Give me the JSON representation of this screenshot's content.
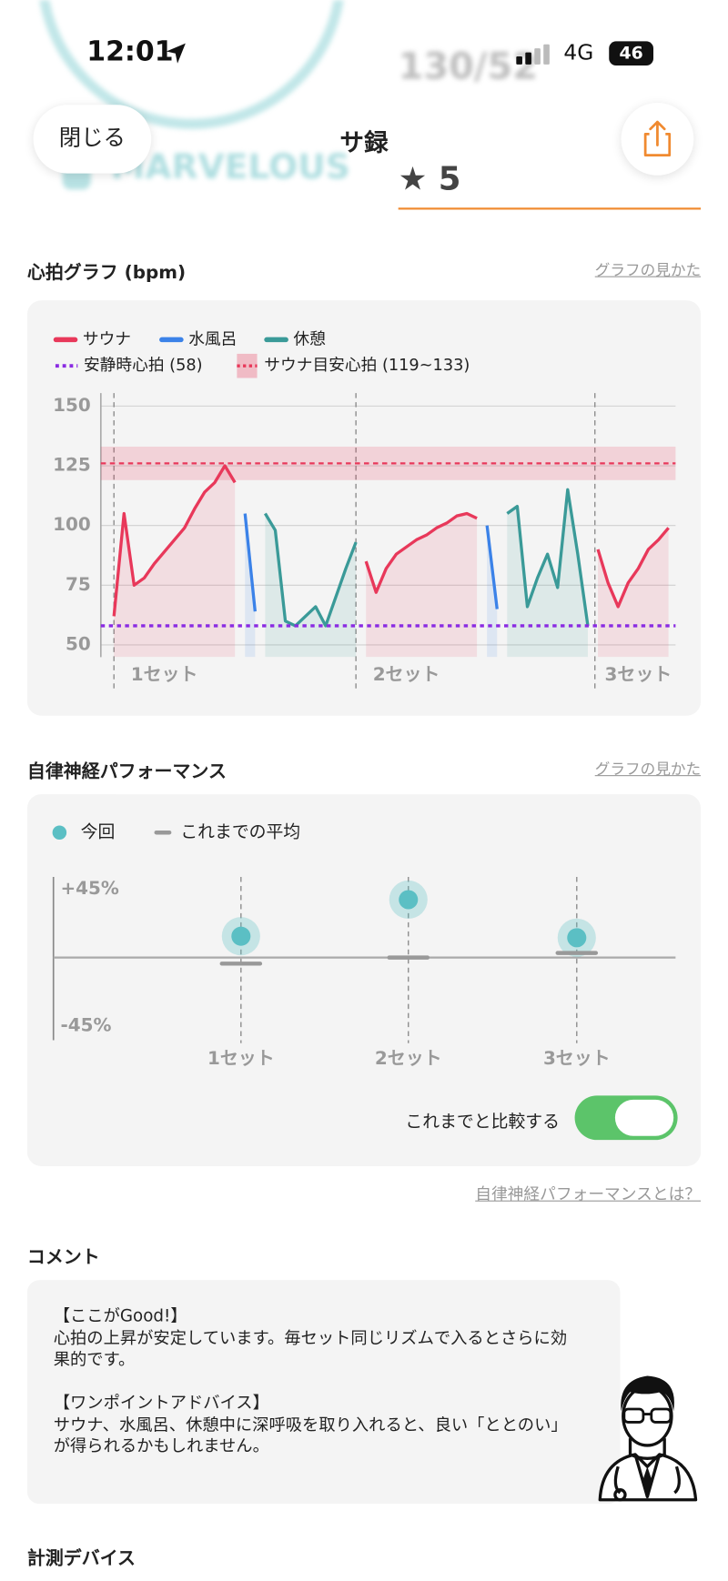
{
  "status_bar": {
    "time": "12:01",
    "network": "4G",
    "battery": "46"
  },
  "header": {
    "close": "閉じる",
    "title": "サ録"
  },
  "background": {
    "score_value": "130/52",
    "rating": "MARVELOUS",
    "stars": 5
  },
  "heart_section": {
    "title": "心拍グラフ (bpm)",
    "help_link": "グラフの見かた"
  },
  "performance_section": {
    "title": "自律神経パフォーマンス",
    "help_link": "グラフの見かた",
    "toggle_label": "これまでと比較する",
    "toggle_on": true,
    "about_link": "自律神経パフォーマンスとは？"
  },
  "comment": {
    "title": "コメント",
    "good_heading": "【ここがGood!】",
    "good_text": "心拍の上昇が安定しています。毎セット同じリズムで入るとさらに効果的です。",
    "advice_heading": "【ワンポイントアドバイス】",
    "advice_text": "サウナ、水風呂、休憩中に深呼吸を取り入れると、良い「ととのい」が得られるかもしれません。"
  },
  "device_section": {
    "title": "計測デバイス"
  },
  "chart_data": [
    {
      "type": "line",
      "categories": [
        null,
        null,
        null,
        null,
        null,
        "1セット",
        null,
        null,
        null,
        null,
        null,
        null,
        null,
        null,
        null,
        null,
        null,
        null,
        null,
        null,
        null,
        null,
        null,
        null,
        null,
        null,
        null,
        null,
        null,
        "2セット",
        null,
        null,
        null,
        null,
        null,
        null,
        null,
        null,
        null,
        null,
        null,
        null,
        null,
        null,
        null,
        null,
        null,
        null,
        null,
        null,
        null,
        null,
        "3セット",
        null,
        null,
        null
      ],
      "series": [
        {
          "name": "サウナ",
          "color": "#e8385a",
          "values": [
            62,
            105,
            75,
            78,
            84,
            89,
            94,
            99,
            107,
            114,
            118,
            125,
            118,
            null,
            null,
            null,
            null,
            null,
            null,
            null,
            null,
            null,
            null,
            null,
            null,
            85,
            72,
            82,
            88,
            91,
            94,
            96,
            99,
            101,
            104,
            105,
            103,
            null,
            null,
            null,
            null,
            null,
            null,
            null,
            null,
            null,
            null,
            null,
            90,
            76,
            66,
            76,
            82,
            90,
            94,
            99
          ]
        },
        {
          "name": "水風呂",
          "color": "#3b82e8",
          "values": [
            null,
            null,
            null,
            null,
            null,
            null,
            null,
            null,
            null,
            null,
            null,
            null,
            null,
            105,
            64,
            null,
            null,
            null,
            null,
            null,
            null,
            null,
            null,
            null,
            null,
            null,
            null,
            null,
            null,
            null,
            null,
            null,
            null,
            null,
            null,
            null,
            null,
            100,
            65,
            null,
            null,
            null,
            null,
            null,
            null,
            null,
            null,
            null,
            null,
            null,
            null,
            null,
            null,
            null,
            null,
            null
          ]
        },
        {
          "name": "休憩",
          "color": "#3a9a98",
          "values": [
            null,
            null,
            null,
            null,
            null,
            null,
            null,
            null,
            null,
            null,
            null,
            null,
            null,
            null,
            null,
            105,
            98,
            60,
            58,
            62,
            66,
            58,
            70,
            82,
            93,
            null,
            null,
            null,
            null,
            null,
            null,
            null,
            null,
            null,
            null,
            null,
            null,
            null,
            null,
            105,
            108,
            66,
            78,
            88,
            74,
            115,
            88,
            58,
            null,
            null,
            null,
            null,
            null,
            null,
            null,
            null
          ]
        }
      ],
      "resting_hr": {
        "name": "安静時心拍 (58)",
        "value": 58,
        "color": "#8a2be2"
      },
      "target_zone": {
        "name": "サウナ目安心拍 (119~133)",
        "range": [
          119,
          133
        ],
        "color": "#e8385a"
      },
      "ylim": [
        45,
        155
      ],
      "yticks": [
        50,
        75,
        100,
        125,
        150
      ],
      "grid": true
    },
    {
      "type": "dot",
      "categories": [
        "1セット",
        "2セット",
        "3セット"
      ],
      "series": [
        {
          "name": "今回",
          "color": "#5bbfc4",
          "marker": "dot",
          "values": [
            14,
            38,
            13
          ]
        },
        {
          "name": "これまでの平均",
          "color": "#999999",
          "marker": "dash",
          "values": [
            -4,
            0,
            3
          ]
        }
      ],
      "ylim": [
        -52,
        52
      ],
      "yticks": [
        {
          "value": 45,
          "label": "+45%"
        },
        {
          "value": -45,
          "label": "-45%"
        }
      ]
    }
  ]
}
